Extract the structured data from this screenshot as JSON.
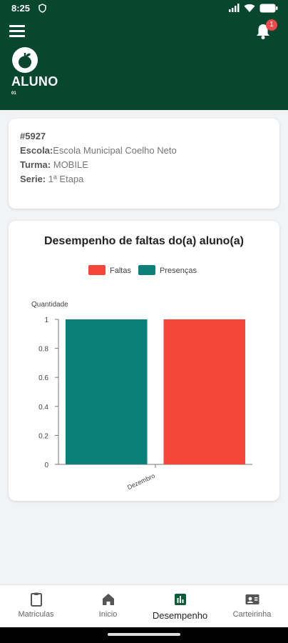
{
  "status_bar": {
    "time": "8:25",
    "icons": [
      "shield-icon",
      "signal-icon",
      "wifi-icon",
      "battery-icon"
    ]
  },
  "header": {
    "title": "ALUNO",
    "subtitle": "01",
    "notification_count": "1",
    "colors": {
      "background": "#07472f",
      "badge": "#ef4a4a"
    }
  },
  "student": {
    "id": "#5927",
    "school_label": "Escola:",
    "school_value": "Escola Municipal Coelho Neto",
    "class_label": "Turma:",
    "class_value": "MOBILE",
    "grade_label": "Serie:",
    "grade_value": "1ª Etapa"
  },
  "chart_data": {
    "type": "bar",
    "title": "Desempenho de faltas do(a) aluno(a)",
    "ylabel": "Quantidade",
    "xlabel": "",
    "categories": [
      "Dezembro"
    ],
    "series": [
      {
        "name": "Presenças",
        "values": [
          1
        ],
        "color": "#0b7f7a"
      },
      {
        "name": "Faltas",
        "values": [
          1
        ],
        "color": "#f4473a"
      }
    ],
    "legend_order": [
      "Faltas",
      "Presenças"
    ],
    "legend_position": "top-center",
    "ylim": [
      0,
      1
    ],
    "yticks": [
      "0",
      "0.2",
      "0.4",
      "0.6",
      "0.8",
      "1"
    ],
    "grid": false
  },
  "bottom_nav": {
    "items": [
      {
        "label": "Matriculas",
        "icon": "clipboard-icon",
        "active": false
      },
      {
        "label": "Inicio",
        "icon": "home-icon",
        "active": false
      },
      {
        "label": "Desempenho",
        "icon": "chart-icon",
        "active": true
      },
      {
        "label": "Carteirinha",
        "icon": "id-card-icon",
        "active": false
      }
    ]
  }
}
